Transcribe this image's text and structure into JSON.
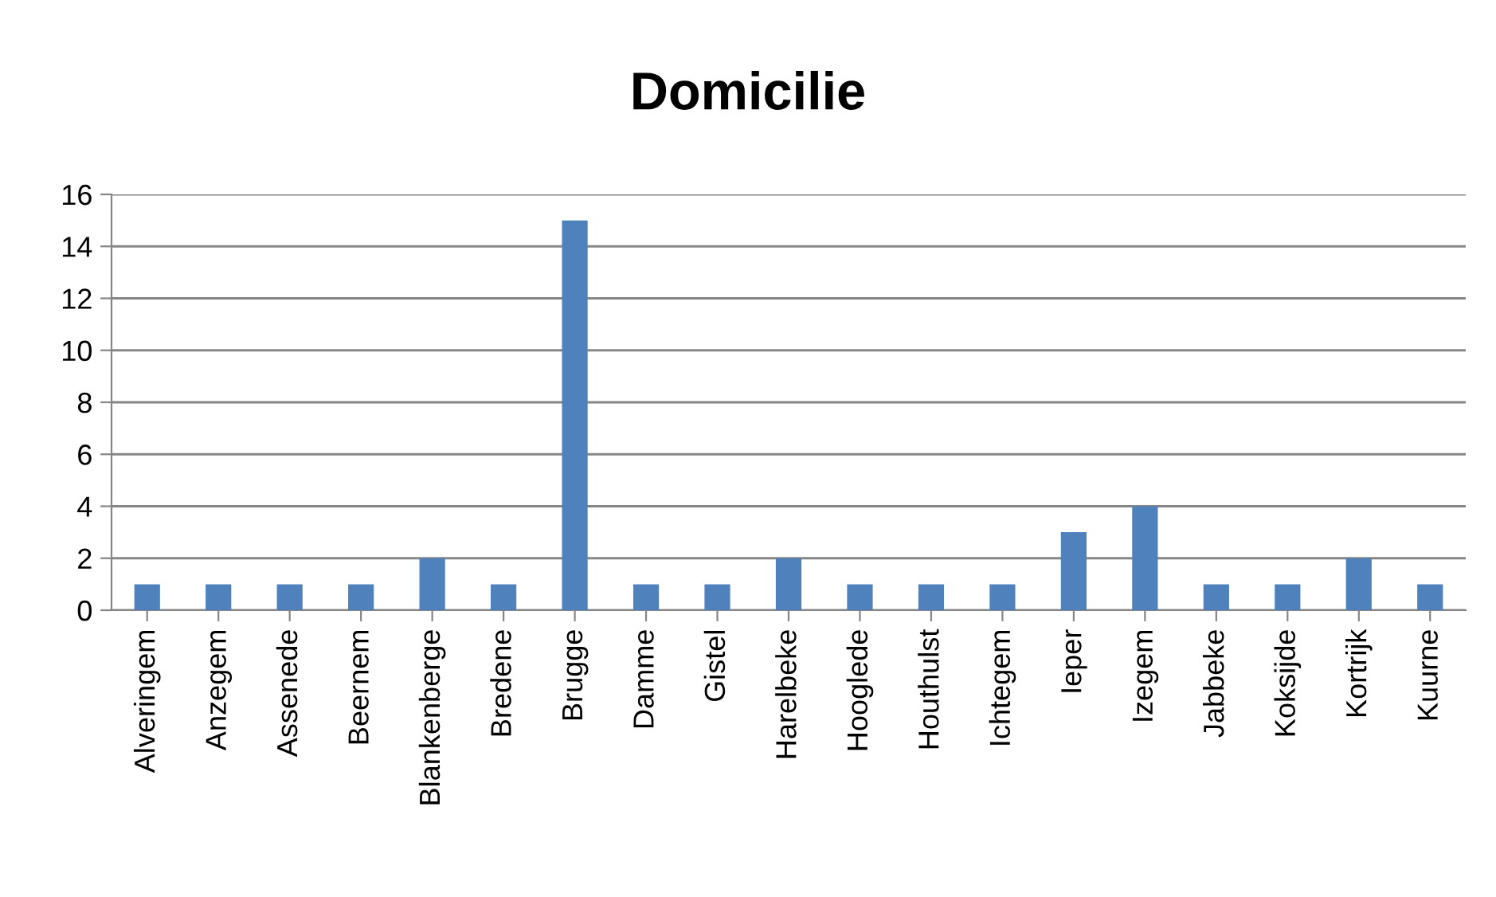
{
  "chart_data": {
    "type": "bar",
    "title": "Domicilie",
    "categories": [
      "Alveringem",
      "Anzegem",
      "Assenede",
      "Beernem",
      "Blankenberge",
      "Bredene",
      "Brugge",
      "Damme",
      "Gistel",
      "Harelbeke",
      "Hooglede",
      "Houthulst",
      "Ichtegem",
      "Ieper",
      "Izegem",
      "Jabbeke",
      "Koksijde",
      "Kortrijk",
      "Kuurne"
    ],
    "values": [
      1,
      1,
      1,
      1,
      2,
      1,
      15,
      1,
      1,
      2,
      1,
      1,
      1,
      3,
      4,
      1,
      1,
      2,
      1
    ],
    "color": "#4f81bd",
    "ylim": [
      0,
      16
    ],
    "yticks": [
      0,
      2,
      4,
      6,
      8,
      10,
      12,
      14,
      16
    ],
    "grid": "y",
    "legend": false
  }
}
